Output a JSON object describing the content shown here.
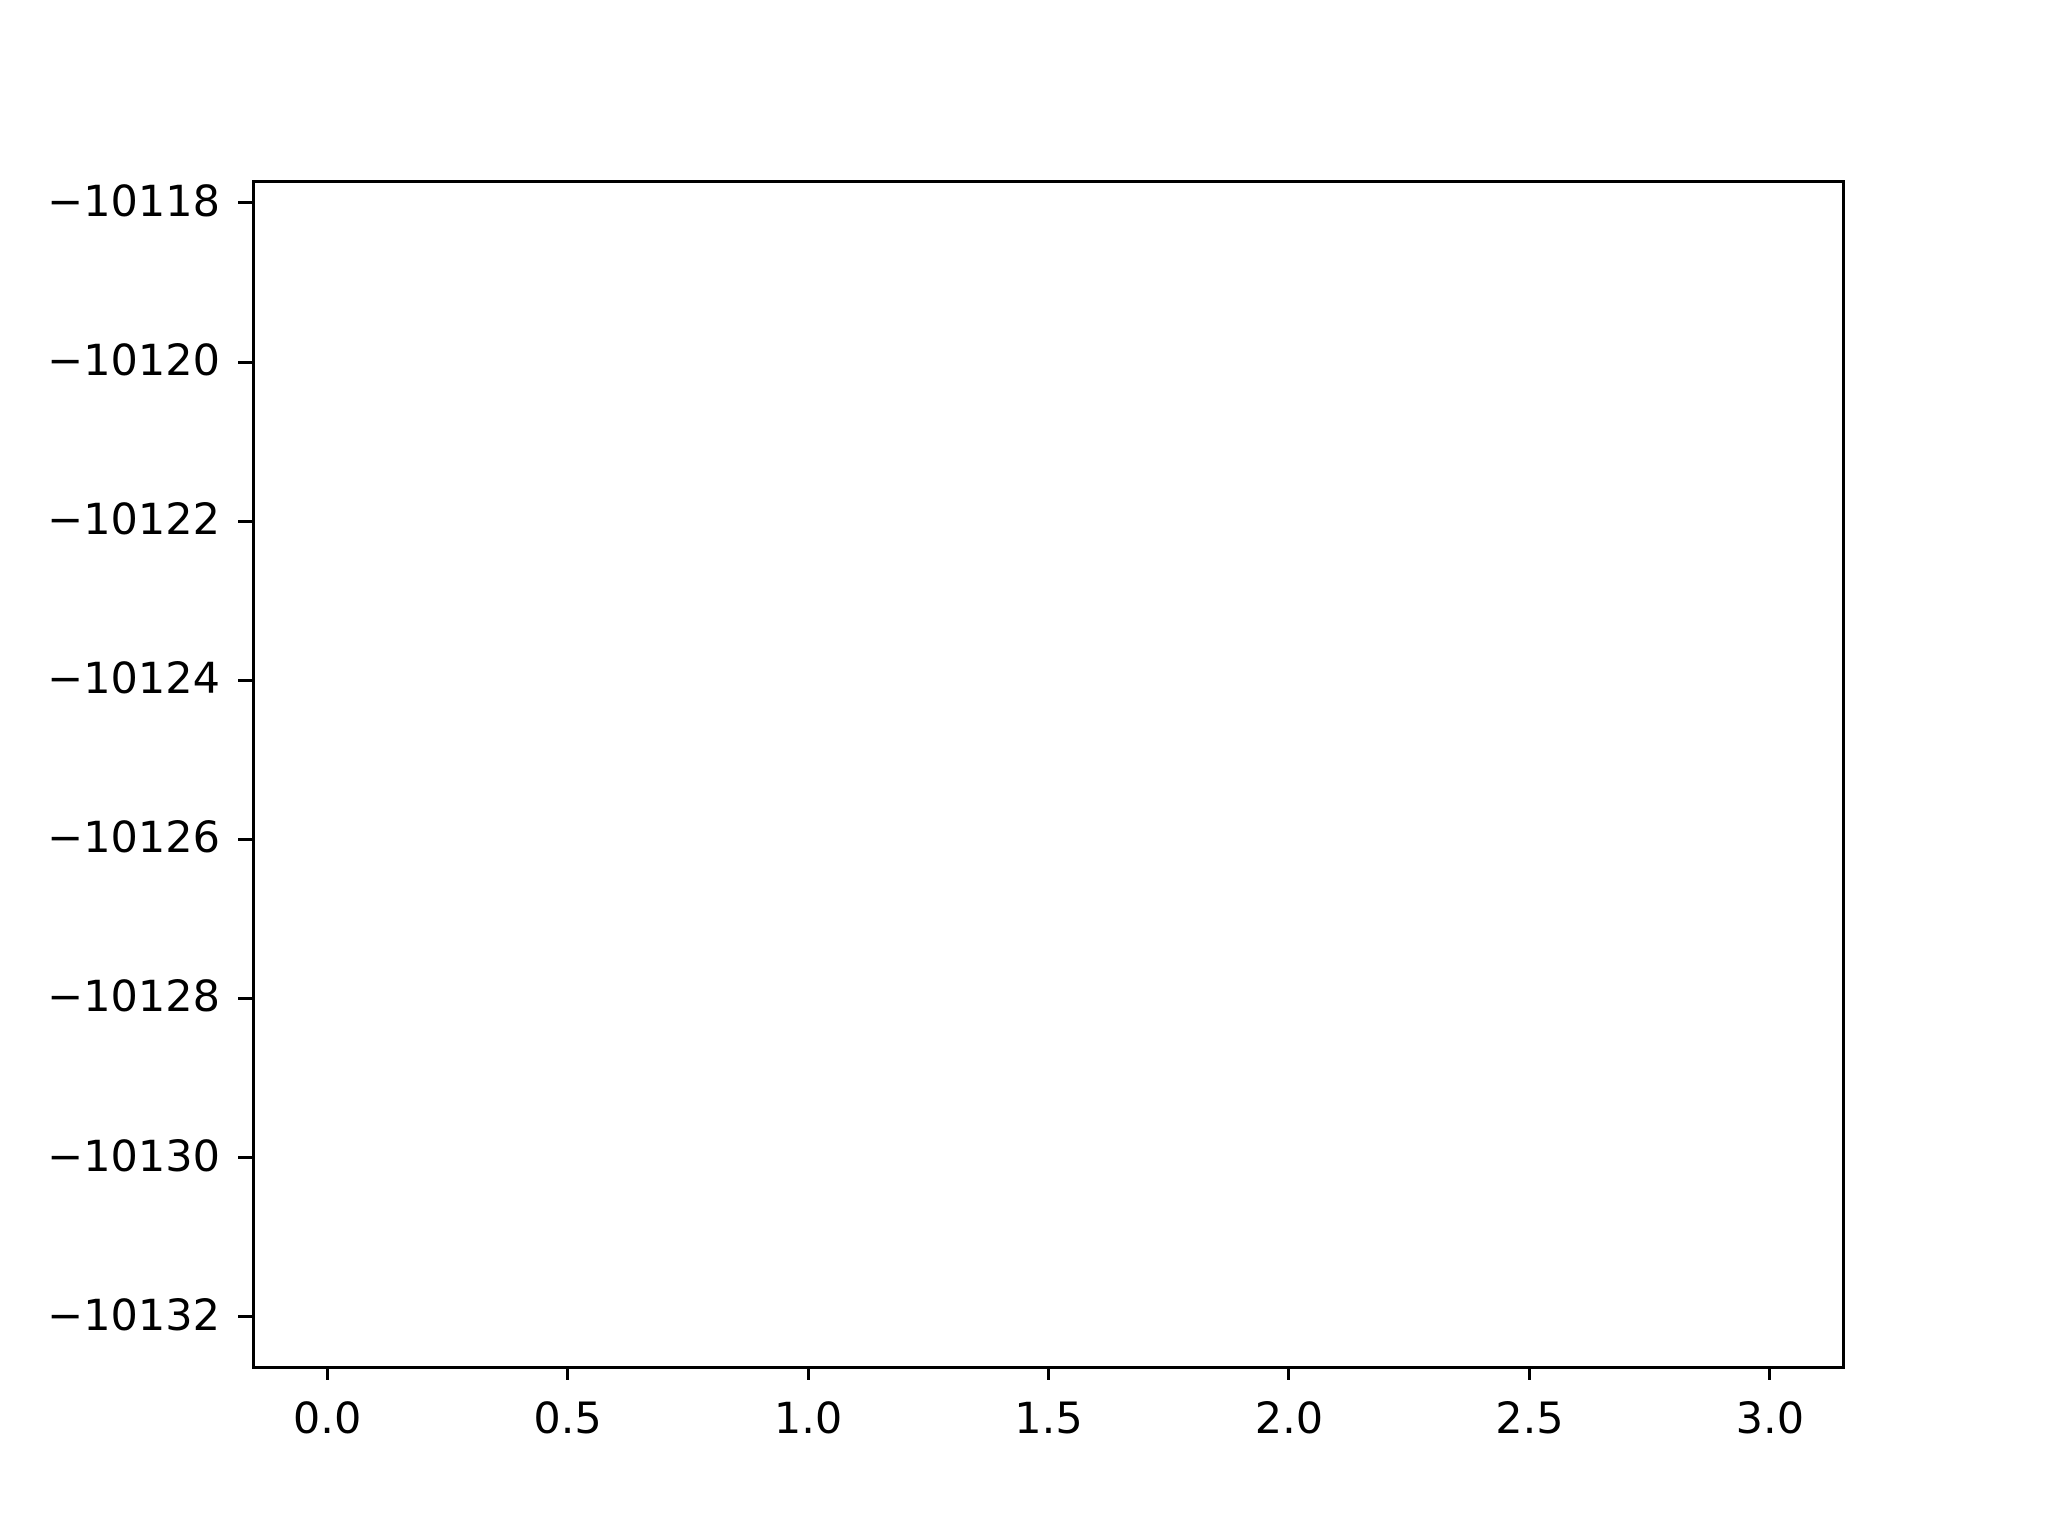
{
  "chart_data": {
    "type": "line",
    "title": "",
    "xlabel": "",
    "ylabel": "",
    "series": [],
    "grid": false,
    "legend": null,
    "xlim": [
      -0.15,
      3.15
    ],
    "ylim": [
      -10132.62,
      -10117.75
    ],
    "x_tick_values": [
      0.0,
      0.5,
      1.0,
      1.5,
      2.0,
      2.5,
      3.0
    ],
    "x_tick_labels": [
      "0.0",
      "0.5",
      "1.0",
      "1.5",
      "2.0",
      "2.5",
      "3.0"
    ],
    "y_tick_values": [
      -10118,
      -10120,
      -10122,
      -10124,
      -10126,
      -10128,
      -10130,
      -10132
    ],
    "y_tick_labels": [
      "−10118",
      "−10120",
      "−10122",
      "−10124",
      "−10126",
      "−10128",
      "−10130",
      "−10132"
    ]
  },
  "colors": {
    "background": "#ffffff",
    "spine": "#000000",
    "tick": "#000000",
    "tick_label": "#000000"
  }
}
